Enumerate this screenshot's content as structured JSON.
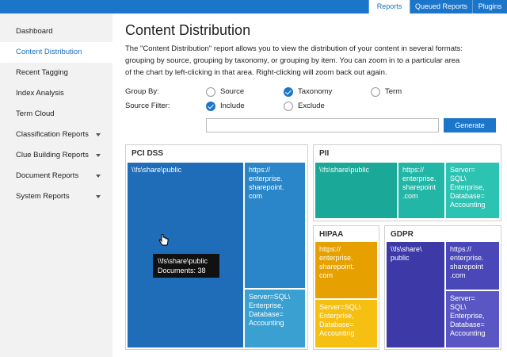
{
  "top_tabs": [
    "Reports",
    "Queued Reports",
    "Plugins"
  ],
  "active_tab": 0,
  "nav": [
    {
      "label": "Dashboard"
    },
    {
      "label": "Content Distribution"
    },
    {
      "label": "Recent Tagging"
    },
    {
      "label": "Index Analysis"
    },
    {
      "label": "Term Cloud"
    },
    {
      "label": "Classification Reports",
      "expandable": true
    },
    {
      "label": "Clue Building Reports",
      "expandable": true
    },
    {
      "label": "Document Reports",
      "expandable": true
    },
    {
      "label": "System Reports",
      "expandable": true
    }
  ],
  "active_nav": 1,
  "header": {
    "title": "Content Distribution",
    "description": [
      "The \"Content Distribution\" report allows you to view the distribution of your content in several formats:",
      "grouping by source, grouping by taxonomy, or grouping by item. You can zoom in to a particular area",
      "of the chart by left-clicking in that area. Right-clicking will zoom back out again."
    ]
  },
  "form": {
    "group_by": {
      "label": "Group By:",
      "options": [
        "Source",
        "Taxonomy",
        "Term"
      ],
      "selected": 1
    },
    "source_filter": {
      "label": "Source Filter:",
      "options": [
        "Include",
        "Exclude"
      ],
      "selected": 0
    },
    "button": "Generate"
  },
  "treemap": {
    "panels": [
      {
        "title": "PCI DSS",
        "tiles": [
          {
            "lines": [
              "\\\\fs\\share\\public"
            ],
            "color": "#1f6db8"
          },
          {
            "lines": [
              "https://",
              "enterprise.",
              "sharepoint.",
              "com"
            ],
            "color": "#2a86c9"
          },
          {
            "lines": [
              "Server=SQL\\",
              "Enterprise,",
              "Database=",
              "Accounting"
            ],
            "color": "#3a9fd1"
          }
        ]
      },
      {
        "title": "PII",
        "tiles": [
          {
            "lines": [
              "\\\\fs\\share\\public"
            ],
            "color": "#1aa898"
          },
          {
            "lines": [
              "https://",
              "enterprise.",
              "sharepoint",
              ".com"
            ],
            "color": "#22b6a6"
          },
          {
            "lines": [
              "Server=",
              "SQL\\",
              "Enterprise,",
              "Database=",
              "Accounting"
            ],
            "color": "#2cc3b3"
          }
        ]
      },
      {
        "title": "HIPAA",
        "tiles": [
          {
            "lines": [
              "https://",
              "enterprise.",
              "sharepoint.",
              "com"
            ],
            "color": "#e6a100"
          },
          {
            "lines": [
              "Server=SQL\\",
              "Enterprise,",
              "Database=",
              "Accounting"
            ],
            "color": "#f6c012"
          }
        ]
      },
      {
        "title": "GDPR",
        "tiles": [
          {
            "lines": [
              "\\\\fs\\share\\",
              "public"
            ],
            "color": "#3d3aa8"
          },
          {
            "lines": [
              "https://",
              "enterprise.",
              "sharepoint",
              ".com"
            ],
            "color": "#4a47b8"
          },
          {
            "lines": [
              "Server=",
              "SQL\\",
              "Enterprise,",
              "Database=",
              "Accounting"
            ],
            "color": "#5a57c4"
          }
        ]
      }
    ]
  },
  "tooltip": {
    "lines": [
      "\\\\fs\\share\\public",
      "Documents: 38"
    ]
  }
}
